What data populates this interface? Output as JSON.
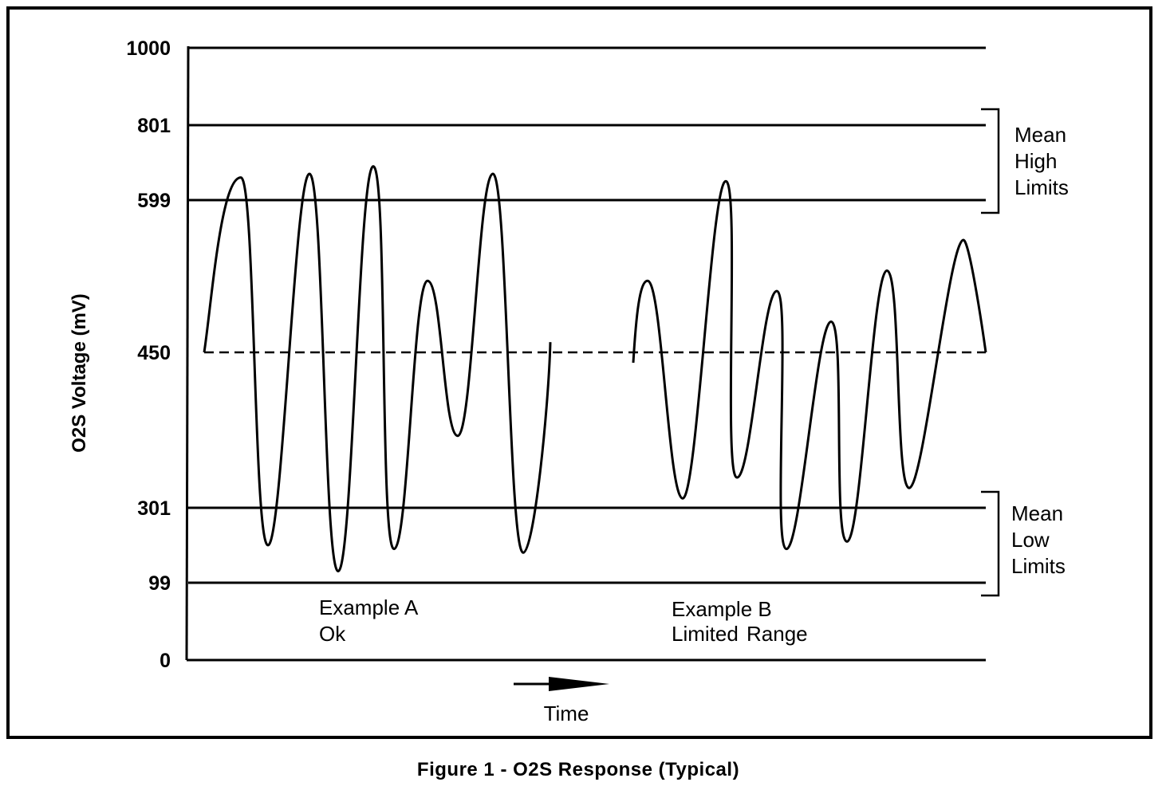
{
  "chart_data": {
    "type": "line",
    "title": "Figure 1 - O2S Response (Typical)",
    "xlabel": "Time",
    "ylabel": "O2S Voltage (mV)",
    "ylim": [
      0,
      1000
    ],
    "yticks": [
      "1000",
      "801",
      "599",
      "450",
      "301",
      "99",
      "0"
    ],
    "reference_lines": [
      {
        "value": 1000,
        "style": "solid"
      },
      {
        "value": 801,
        "style": "solid"
      },
      {
        "value": 599,
        "style": "solid"
      },
      {
        "value": 450,
        "style": "dashed"
      },
      {
        "value": 301,
        "style": "solid"
      },
      {
        "value": 99,
        "style": "solid"
      }
    ],
    "bands": [
      {
        "label_lines": [
          "Mean",
          "High",
          "Limits"
        ],
        "from": 599,
        "to": 801
      },
      {
        "label_lines": [
          "Mean",
          "Low",
          "Limits"
        ],
        "from": 99,
        "to": 301
      }
    ],
    "annotations": [
      {
        "lines": [
          "Example A",
          "Ok"
        ]
      },
      {
        "lines": [
          "Example B",
          "Limited",
          "Range"
        ]
      }
    ],
    "series": [
      {
        "example": "A",
        "extrema": [
          450,
          660,
          200,
          670,
          130,
          690,
          190,
          520,
          370,
          670,
          180,
          460
        ]
      },
      {
        "example": "B",
        "extrema": [
          440,
          520,
          310,
          650,
          330,
          510,
          190,
          480,
          210,
          530,
          320,
          560,
          450
        ]
      }
    ]
  }
}
